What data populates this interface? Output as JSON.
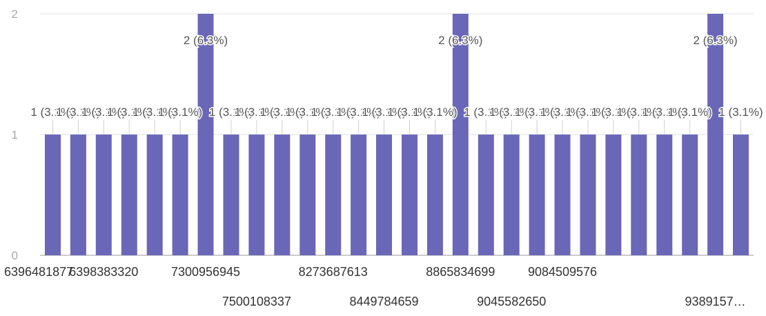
{
  "chart_data": {
    "type": "bar",
    "categories": [
      "6396481877",
      "",
      "6398383320",
      "",
      "",
      "",
      "7300956945",
      "",
      "7500108337",
      "",
      "",
      "8273687613",
      "",
      "8449784659",
      "",
      "",
      "8865834699",
      "",
      "9045582650",
      "",
      "9084509576",
      "",
      "",
      "",
      "",
      "",
      "9389157…",
      ""
    ],
    "values": [
      1,
      1,
      1,
      1,
      1,
      1,
      2,
      1,
      1,
      1,
      1,
      1,
      1,
      1,
      1,
      1,
      2,
      1,
      1,
      1,
      1,
      1,
      1,
      1,
      1,
      1,
      2,
      1
    ],
    "data_labels": [
      "1 (3.1%)",
      "1 (3.1%)",
      "1 (3.1%)",
      "1 (3.1%)",
      "1 (3.1%)",
      "1 (3.1%)",
      "2 (6.3%)",
      "1 (3.1%)",
      "1 (3.1%)",
      "1 (3.1%)",
      "1 (3.1%)",
      "1 (3.1%)",
      "1 (3.1%)",
      "1 (3.1%)",
      "1 (3.1%)",
      "1 (3.1%)",
      "2 (6.3%)",
      "1 (3.1%)",
      "1 (3.1%)",
      "1 (3.1%)",
      "1 (3.1%)",
      "1 (3.1%)",
      "1 (3.1%)",
      "1 (3.1%)",
      "1 (3.1%)",
      "1 (3.1%)",
      "2 (6.3%)",
      "1 (3.1%)"
    ],
    "y_ticks": [
      "0",
      "1",
      "2"
    ],
    "ylim": [
      0,
      2
    ],
    "title": "",
    "xlabel": "",
    "ylabel": "",
    "bar_color": "#6a67b8",
    "grid": true
  }
}
